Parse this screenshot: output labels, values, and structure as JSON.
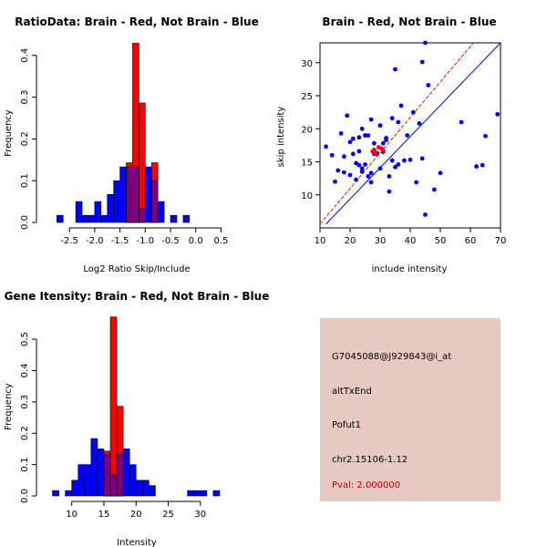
{
  "colors": {
    "red": "#ff0000",
    "blue": "#0000ff",
    "overlap": "#7f007f",
    "panel_bg": "#e6c9c2",
    "pval": "#b30000"
  },
  "chart_data": [
    {
      "type": "bar",
      "subtype": "overlaid-histogram",
      "title": "RatioData: Brain - Red, Not Brain - Blue",
      "xlabel": "Log2 Ratio Skip/Include",
      "ylabel": "Frequency",
      "xlim": [
        -2.9,
        0.6
      ],
      "ylim": [
        0,
        0.43
      ],
      "xticks": [
        "-2.5",
        "-2.0",
        "-1.5",
        "-1.0",
        "-0.5",
        "0.0",
        "0.5"
      ],
      "xtick_values": [
        -2.5,
        -2.0,
        -1.5,
        -1.0,
        -0.5,
        0.0,
        0.5
      ],
      "yticks": [
        "0.0",
        "0.1",
        "0.2",
        "0.3",
        "0.4"
      ],
      "ytick_values": [
        0,
        0.1,
        0.2,
        0.3,
        0.4
      ],
      "bin_edges": [
        -2.75,
        -2.625,
        -2.5,
        -2.375,
        -2.25,
        -2.125,
        -2.0,
        -1.875,
        -1.75,
        -1.625,
        -1.5,
        -1.375,
        -1.25,
        -1.125,
        -1.0,
        -0.875,
        -0.75,
        -0.625,
        -0.5,
        -0.375,
        -0.25,
        -0.125,
        0.0,
        0.125,
        0.25,
        0.375,
        0.5
      ],
      "series": [
        {
          "name": "Not Brain",
          "color": "blue",
          "values": [
            0.017,
            0,
            0,
            0.05,
            0.017,
            0.017,
            0.05,
            0.017,
            0.067,
            0.1,
            0.133,
            0.133,
            0.133,
            0.033,
            0.133,
            0.1,
            0.05,
            0,
            0.017,
            0,
            0.017,
            0,
            0,
            0,
            0,
            0
          ]
        },
        {
          "name": "Brain",
          "color": "red",
          "values": [
            0,
            0,
            0,
            0,
            0,
            0,
            0,
            0,
            0,
            0,
            0,
            0.143,
            0.429,
            0.286,
            0,
            0.143,
            0,
            0,
            0,
            0,
            0,
            0,
            0,
            0,
            0,
            0
          ]
        }
      ]
    },
    {
      "type": "scatter",
      "title": "Brain - Red, Not Brain - Blue",
      "xlabel": "include intensity",
      "ylabel": "skip intensity",
      "xlim": [
        10,
        70
      ],
      "ylim": [
        5,
        33
      ],
      "xticks": [
        "10",
        "20",
        "30",
        "40",
        "50",
        "60",
        "70"
      ],
      "xtick_values": [
        10,
        20,
        30,
        40,
        50,
        60,
        70
      ],
      "yticks": [
        "10",
        "15",
        "20",
        "25",
        "30"
      ],
      "ytick_values": [
        10,
        15,
        20,
        25,
        30
      ],
      "lines": [
        {
          "name": "Brain fit",
          "color": "red",
          "dashed": true,
          "points": [
            [
              10,
              5.6
            ],
            [
              61,
              33
            ]
          ]
        },
        {
          "name": "Not Brain fit",
          "color": "blue",
          "dashed": false,
          "points": [
            [
              12,
              5.6
            ],
            [
              70,
              33
            ]
          ]
        }
      ],
      "series": [
        {
          "name": "Not Brain",
          "color": "blue",
          "points": [
            [
              12,
              17.3
            ],
            [
              14,
              16
            ],
            [
              15,
              12
            ],
            [
              16,
              13.7
            ],
            [
              17,
              19.3
            ],
            [
              18,
              13.4
            ],
            [
              18,
              15.8
            ],
            [
              19,
              22
            ],
            [
              20,
              18
            ],
            [
              20,
              13
            ],
            [
              21,
              18.5
            ],
            [
              21,
              16.2
            ],
            [
              22,
              14.8
            ],
            [
              22,
              12.3
            ],
            [
              23,
              14.5
            ],
            [
              23,
              16.6
            ],
            [
              23,
              18.7
            ],
            [
              24,
              20
            ],
            [
              24,
              14
            ],
            [
              24,
              13.5
            ],
            [
              25,
              19
            ],
            [
              25,
              14.6
            ],
            [
              26,
              19
            ],
            [
              26,
              12.8
            ],
            [
              27,
              21.4
            ],
            [
              27,
              13.3
            ],
            [
              27,
              11.9
            ],
            [
              28,
              16.2
            ],
            [
              28,
              17.8
            ],
            [
              29,
              16.3
            ],
            [
              30,
              20.5
            ],
            [
              30,
              14
            ],
            [
              31,
              16.5
            ],
            [
              31,
              17.8
            ],
            [
              32,
              18.3
            ],
            [
              32,
              18.6
            ],
            [
              33,
              10.5
            ],
            [
              33,
              12.8
            ],
            [
              34,
              21.6
            ],
            [
              34,
              15.2
            ],
            [
              35,
              29
            ],
            [
              35,
              14.2
            ],
            [
              36,
              21
            ],
            [
              36,
              14.6
            ],
            [
              37,
              23.5
            ],
            [
              38,
              15.2
            ],
            [
              39,
              19
            ],
            [
              40,
              15.3
            ],
            [
              41,
              22.5
            ],
            [
              42,
              11.9
            ],
            [
              43,
              20.8
            ],
            [
              44,
              30.1
            ],
            [
              44,
              15.5
            ],
            [
              45,
              7
            ],
            [
              45,
              33
            ],
            [
              46,
              26.6
            ],
            [
              48,
              10.8
            ],
            [
              50,
              13.3
            ],
            [
              57,
              21
            ],
            [
              62,
              14.3
            ],
            [
              64,
              14.5
            ],
            [
              65,
              18.9
            ],
            [
              69,
              22.2
            ]
          ]
        },
        {
          "name": "Brain",
          "color": "red",
          "points": [
            [
              27.5,
              16.6
            ],
            [
              28,
              16.8
            ],
            [
              28.3,
              16.4
            ],
            [
              28.6,
              16.2
            ],
            [
              29.5,
              17.2
            ],
            [
              30.5,
              17
            ],
            [
              31,
              16.7
            ]
          ]
        }
      ]
    },
    {
      "type": "bar",
      "subtype": "overlaid-histogram",
      "title": "Gene Itensity: Brain - Red, Not Brain - Blue",
      "xlabel": "Intensity",
      "ylabel": "Frequency",
      "xlim": [
        6.5,
        34
      ],
      "ylim": [
        0,
        0.57
      ],
      "xticks": [
        "10",
        "15",
        "20",
        "25",
        "30"
      ],
      "xtick_values": [
        10,
        15,
        20,
        25,
        30
      ],
      "yticks": [
        "0.0",
        "0.1",
        "0.2",
        "0.3",
        "0.4",
        "0.5"
      ],
      "ytick_values": [
        0,
        0.1,
        0.2,
        0.3,
        0.4,
        0.5
      ],
      "bin_edges": [
        7,
        8,
        9,
        10,
        11,
        12,
        13,
        14,
        15,
        16,
        17,
        18,
        19,
        20,
        21,
        22,
        23,
        24,
        25,
        26,
        27,
        28,
        29,
        30,
        31,
        32,
        33
      ],
      "series": [
        {
          "name": "Not Brain",
          "color": "blue",
          "values": [
            0.017,
            0,
            0.017,
            0.05,
            0.1,
            0.1,
            0.183,
            0.15,
            0.133,
            0.067,
            0.133,
            0.15,
            0.1,
            0.05,
            0.05,
            0.033,
            0,
            0,
            0,
            0,
            0,
            0.017,
            0.017,
            0.017,
            0,
            0.017
          ]
        },
        {
          "name": "Brain",
          "color": "red",
          "values": [
            0,
            0,
            0,
            0,
            0,
            0,
            0,
            0,
            0.143,
            0.571,
            0.286,
            0,
            0,
            0,
            0,
            0,
            0,
            0,
            0,
            0,
            0,
            0,
            0,
            0,
            0,
            0
          ]
        }
      ]
    }
  ],
  "info": {
    "probe": "G7045088@J929843@i_at",
    "event": "altTxEnd",
    "gene": "Pofut1",
    "location": "chr2.15106-1.12",
    "pval": "Pval: 2.000000"
  }
}
